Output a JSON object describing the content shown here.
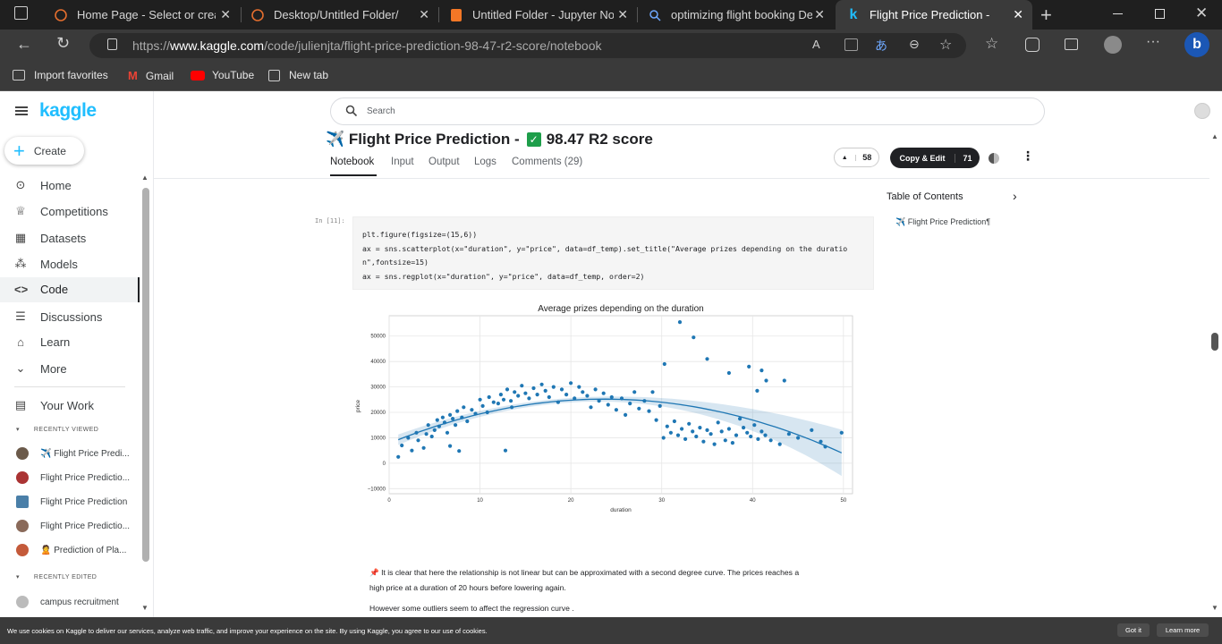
{
  "browser": {
    "tabs": [
      {
        "title": "Home Page - Select or create",
        "close": "✕"
      },
      {
        "title": "Desktop/Untitled Folder/",
        "close": "✕"
      },
      {
        "title": "Untitled Folder - Jupyter Note",
        "close": "✕"
      },
      {
        "title": "optimizing flight booking Dec",
        "close": "✕"
      },
      {
        "title": "Flight Price Prediction - ",
        "close": "✕"
      }
    ],
    "new_tab": "+",
    "url_prefix": "https://",
    "url_domain": "www.kaggle.com",
    "url_path": "/code/julienjta/flight-price-prediction-98-47-r2-score/notebook",
    "favorites": [
      "Import favorites",
      "Gmail",
      "YouTube",
      "New tab"
    ]
  },
  "kaggle": {
    "logo": "kaggle",
    "create": "Create",
    "nav": [
      "Home",
      "Competitions",
      "Datasets",
      "Models",
      "Code",
      "Discussions",
      "Learn",
      "More"
    ],
    "your_work": "Your Work",
    "recently_viewed_label": "RECENTLY VIEWED",
    "recently_viewed": [
      "✈️ Flight Price Predi...",
      "Flight Price Predictio...",
      "Flight Price Prediction",
      "Flight Price Predictio...",
      "🙎 Prediction of Pla..."
    ],
    "recently_edited_label": "RECENTLY EDITED",
    "recently_edited": [
      "campus recruitment"
    ],
    "search_placeholder": "Search",
    "notebook_title_a": "✈️ Flight Price Prediction - ",
    "notebook_title_b": "98.47 R2 score",
    "tabs": [
      "Notebook",
      "Input",
      "Output",
      "Logs",
      "Comments (29)"
    ],
    "votes": "58",
    "copy_edit": "Copy & Edit",
    "copy_count": "71",
    "toc_title": "Table of Contents",
    "toc_item": "✈️ Flight Price Prediction¶",
    "cell_prompt": "In [11]:",
    "code_lines": [
      "plt.figure(figsize=(15,6))",
      "ax = sns.scatterplot(x=\"duration\", y=\"price\", data=df_temp).set_title(\"Average prizes depending on the duratio",
      "n\",fontsize=15)",
      "ax = sns.regplot(x=\"duration\", y=\"price\", data=df_temp, order=2)"
    ],
    "md_1": "📌 It is clear that here the relationship is not linear but can be approximated with a second degree curve. The prices reaches a",
    "md_2": "high price at a duration of 20 hours before lowering again.",
    "md_3": "However some outliers seem to affect the regression curve ."
  },
  "cookie": {
    "text": "We use cookies on Kaggle to deliver our services, analyze web traffic, and improve your experience on the site. By using Kaggle, you agree to our use of cookies.",
    "got_it": "Got it",
    "learn_more": "Learn more"
  },
  "colors": {
    "accent": "#20beff",
    "dot": "#1f77b4"
  },
  "chart_data": {
    "type": "scatter",
    "title": "Average prizes depending on the duration",
    "xlabel": "duration",
    "ylabel": "price",
    "xlim": [
      0,
      51
    ],
    "ylim": [
      -12000,
      58000
    ],
    "xticks": [
      0,
      10,
      20,
      30,
      40,
      50
    ],
    "yticks": [
      -10000,
      0,
      10000,
      20000,
      30000,
      40000,
      50000
    ],
    "ytick_labels": [
      "−10000",
      "0",
      "10000",
      "20000",
      "30000",
      "40000",
      "50000"
    ],
    "grid": true,
    "series": [
      {
        "x": [
          1.0,
          1.4,
          2.1,
          2.5,
          3.0,
          3.2,
          3.8,
          4.1,
          4.3,
          4.7,
          5.0,
          5.3,
          5.5,
          5.9,
          6.1,
          6.4,
          6.7,
          7.0,
          7.3,
          7.5,
          8.0,
          8.2,
          8.6,
          9.1,
          9.5,
          10.0,
          10.3,
          10.8,
          11.0,
          11.5,
          12.0,
          12.3,
          12.6,
          13.0,
          13.4,
          13.8,
          14.2,
          14.6,
          15.0,
          15.4,
          15.9,
          16.3,
          16.8,
          17.2,
          17.6,
          18.1,
          18.6,
          19.0,
          19.5,
          20.0,
          20.4,
          20.9,
          21.3,
          21.8,
          22.2,
          22.7,
          23.1,
          23.6,
          24.1,
          24.5,
          25.0,
          25.6,
          26.0,
          26.5,
          27.0,
          27.5,
          28.1,
          28.6,
          29.0,
          29.4,
          29.8,
          30.2,
          30.6,
          31.0,
          31.4,
          31.8,
          32.2,
          32.6,
          33.0,
          33.4,
          33.8,
          34.2,
          34.6,
          35.0,
          35.4,
          35.8,
          36.2,
          36.6,
          37.0,
          37.4,
          37.8,
          38.2,
          38.6,
          39.0,
          39.4,
          39.8,
          40.2,
          40.6,
          41.0,
          41.4,
          42.0,
          43.0,
          44.0,
          45.0,
          46.5,
          47.5,
          48.0,
          49.8,
          30.3,
          32.0,
          33.5,
          35.0,
          37.4,
          39.6,
          40.5,
          41.5,
          43.5,
          12.8,
          6.7,
          41.0,
          13.5,
          7.7
        ],
        "y": [
          2500,
          7000,
          10000,
          5000,
          12000,
          9000,
          6000,
          11500,
          15000,
          10500,
          13000,
          17000,
          14500,
          18000,
          16000,
          12000,
          19000,
          17500,
          15000,
          20500,
          18000,
          22000,
          16500,
          21000,
          19500,
          25000,
          22500,
          20000,
          26000,
          24000,
          23500,
          27000,
          25000,
          29000,
          24500,
          28000,
          26500,
          30500,
          27500,
          25500,
          29500,
          27000,
          31000,
          28500,
          26000,
          30000,
          24000,
          29000,
          27000,
          31500,
          25500,
          30000,
          28000,
          26500,
          22000,
          29000,
          24500,
          27500,
          23000,
          26000,
          21000,
          25500,
          19000,
          23500,
          28000,
          21500,
          24500,
          20500,
          28000,
          17000,
          22500,
          10000,
          14500,
          12000,
          16500,
          11000,
          13500,
          9500,
          15500,
          12500,
          10500,
          14000,
          8500,
          13000,
          11500,
          7500,
          16000,
          12500,
          9000,
          13500,
          8000,
          11000,
          17500,
          14000,
          12000,
          10500,
          15000,
          9500,
          12500,
          11000,
          9000,
          7500,
          11500,
          10000,
          13000,
          8500,
          6500,
          12000,
          39000,
          55500,
          49500,
          41000,
          35500,
          38000,
          28500,
          32500,
          32500,
          5000,
          6800,
          36500,
          22000,
          4800
        ]
      }
    ]
  }
}
